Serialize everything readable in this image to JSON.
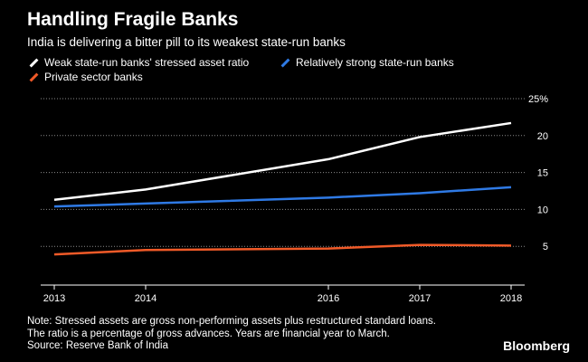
{
  "header": {
    "title": "Handling Fragile Banks",
    "subtitle": "India is delivering a bitter pill to its weakest state-run banks"
  },
  "chart_data": {
    "type": "line",
    "x": [
      2013,
      2014,
      2016,
      2017,
      2018
    ],
    "x_tick_labels": [
      "2013",
      "2014",
      "2016",
      "2017",
      "2018"
    ],
    "ylim": [
      0,
      25
    ],
    "y_ticks": [
      5,
      10,
      15,
      20,
      25
    ],
    "y_tick_labels": [
      "5",
      "10",
      "15",
      "20",
      "25%"
    ],
    "grid": true,
    "legend_placement": "top-left",
    "series": [
      {
        "name": "Weak state-run banks' stressed asset ratio",
        "color": "#ffffff",
        "values": [
          11.3,
          12.7,
          16.8,
          19.8,
          21.7
        ]
      },
      {
        "name": "Relatively strong state-run banks",
        "color": "#2f7ae5",
        "values": [
          10.4,
          10.8,
          11.6,
          12.2,
          13.0
        ]
      },
      {
        "name": "Private sector banks",
        "color": "#f05a28",
        "values": [
          3.9,
          4.5,
          4.7,
          5.2,
          5.1
        ]
      }
    ]
  },
  "footer": {
    "note_lines": [
      "Note: Stressed assets are gross non-performing assets plus restructured standard loans.",
      "The ratio is a percentage of gross advances. Years are financial year to March.",
      "Source: Reserve Bank of India"
    ],
    "brand": "Bloomberg"
  }
}
